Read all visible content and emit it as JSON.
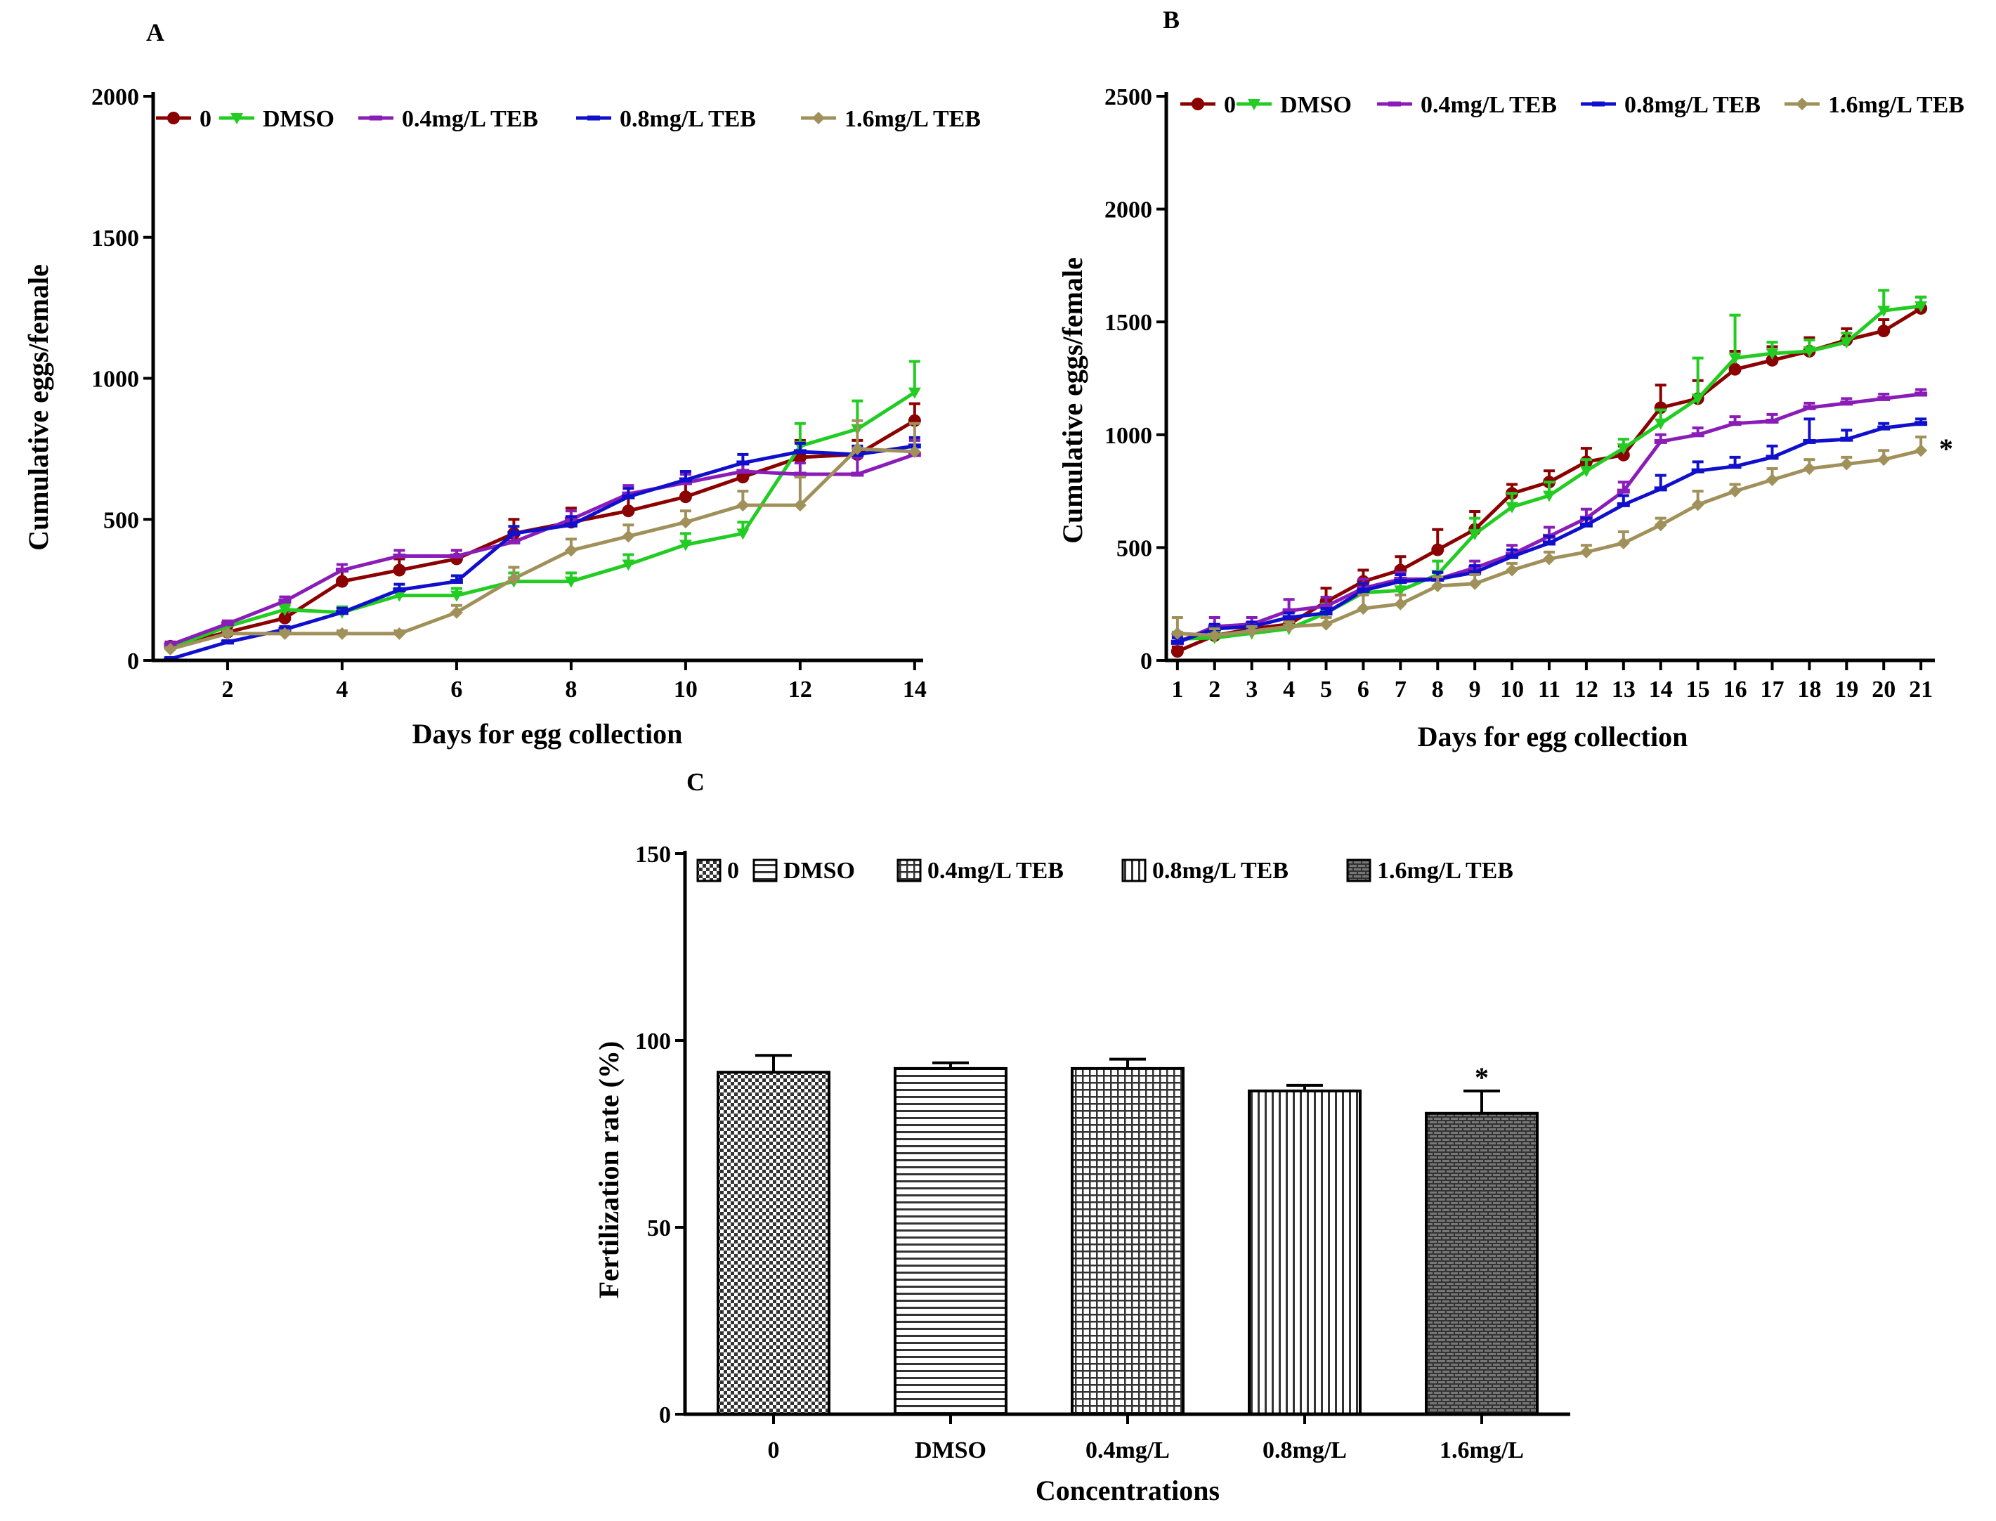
{
  "colors": {
    "control": "#8b0000",
    "dmso": "#22cc22",
    "teb04": "#8a1cb8",
    "teb08": "#1010cc",
    "teb16": "#a0905a",
    "axis": "#000000"
  },
  "chart_data": [
    {
      "id": "A",
      "type": "line",
      "panel_label": "A",
      "xlabel": "Days for egg collection",
      "ylabel": "Cumulative eggs/female",
      "xlim": [
        0.7,
        14.1
      ],
      "ylim": [
        0,
        2000
      ],
      "xticks": [
        2,
        4,
        6,
        8,
        10,
        12,
        14
      ],
      "yticks": [
        0,
        500,
        1000,
        1500,
        2000
      ],
      "legend_position": "top",
      "x": [
        1,
        2,
        3,
        4,
        5,
        6,
        7,
        8,
        9,
        10,
        11,
        12,
        13,
        14
      ],
      "series": [
        {
          "name": "0",
          "color_key": "control",
          "marker": "circle",
          "values": [
            50,
            100,
            150,
            280,
            320,
            360,
            450,
            490,
            530,
            580,
            650,
            720,
            730,
            850
          ],
          "errors": [
            15,
            20,
            25,
            40,
            40,
            30,
            50,
            50,
            50,
            50,
            50,
            60,
            50,
            60
          ]
        },
        {
          "name": "DMSO",
          "color_key": "dmso",
          "marker": "triangle-down",
          "values": [
            45,
            120,
            180,
            170,
            230,
            230,
            280,
            280,
            340,
            410,
            450,
            760,
            820,
            950
          ],
          "errors": [
            10,
            15,
            20,
            20,
            25,
            25,
            30,
            30,
            35,
            40,
            40,
            80,
            100,
            110
          ]
        },
        {
          "name": "0.4mg/L TEB",
          "color_key": "teb04",
          "marker": "dash",
          "values": [
            55,
            130,
            210,
            320,
            370,
            370,
            420,
            500,
            590,
            630,
            670,
            660,
            660,
            730
          ],
          "errors": [
            10,
            10,
            15,
            20,
            20,
            20,
            30,
            30,
            30,
            30,
            30,
            40,
            60,
            50
          ]
        },
        {
          "name": "0.8mg/L TEB",
          "color_key": "teb08",
          "marker": "dash",
          "values": [
            5,
            65,
            110,
            170,
            250,
            280,
            450,
            480,
            580,
            640,
            700,
            740,
            730,
            760
          ],
          "errors": [
            5,
            5,
            10,
            15,
            20,
            20,
            25,
            30,
            30,
            30,
            30,
            30,
            30,
            30
          ]
        },
        {
          "name": "1.6mg/L TEB",
          "color_key": "teb16",
          "marker": "diamond",
          "values": [
            40,
            95,
            95,
            95,
            95,
            170,
            290,
            390,
            440,
            490,
            550,
            550,
            750,
            740
          ],
          "errors": [
            5,
            10,
            10,
            10,
            10,
            25,
            40,
            40,
            40,
            40,
            50,
            100,
            100,
            100
          ]
        }
      ]
    },
    {
      "id": "B",
      "type": "line",
      "panel_label": "B",
      "xlabel": "Days for egg collection",
      "ylabel": "Cumulative eggs/female",
      "xlim": [
        0.7,
        21.3
      ],
      "ylim": [
        0,
        2500
      ],
      "xticks": [
        1,
        2,
        3,
        4,
        5,
        6,
        7,
        8,
        9,
        10,
        11,
        12,
        13,
        14,
        15,
        16,
        17,
        18,
        19,
        20,
        21
      ],
      "yticks": [
        0,
        500,
        1000,
        1500,
        2000,
        2500
      ],
      "legend_position": "top",
      "annotation": "*",
      "x": [
        1,
        2,
        3,
        4,
        5,
        6,
        7,
        8,
        9,
        10,
        11,
        12,
        13,
        14,
        15,
        16,
        17,
        18,
        19,
        20,
        21
      ],
      "series": [
        {
          "name": "0",
          "color_key": "control",
          "marker": "circle",
          "values": [
            40,
            110,
            140,
            160,
            260,
            350,
            400,
            490,
            580,
            740,
            790,
            880,
            910,
            1120,
            1160,
            1290,
            1330,
            1370,
            1420,
            1460,
            1560
          ],
          "errors": [
            20,
            25,
            25,
            30,
            60,
            50,
            60,
            90,
            80,
            40,
            50,
            60,
            40,
            100,
            80,
            80,
            60,
            60,
            50,
            50,
            50
          ]
        },
        {
          "name": "DMSO",
          "color_key": "dmso",
          "marker": "triangle-down",
          "values": [
            95,
            100,
            120,
            140,
            210,
            300,
            310,
            380,
            560,
            680,
            730,
            840,
            940,
            1050,
            1160,
            1340,
            1360,
            1370,
            1410,
            1550,
            1570
          ],
          "errors": [
            30,
            30,
            25,
            30,
            40,
            40,
            40,
            60,
            70,
            60,
            60,
            50,
            40,
            60,
            180,
            190,
            50,
            50,
            40,
            90,
            40
          ]
        },
        {
          "name": "0.4mg/L TEB",
          "color_key": "teb04",
          "marker": "dash",
          "values": [
            80,
            150,
            160,
            220,
            240,
            320,
            360,
            360,
            410,
            470,
            550,
            630,
            750,
            970,
            1000,
            1050,
            1060,
            1120,
            1140,
            1160,
            1180
          ],
          "errors": [
            30,
            40,
            30,
            50,
            40,
            40,
            30,
            30,
            30,
            40,
            40,
            40,
            40,
            30,
            30,
            30,
            30,
            20,
            20,
            20,
            20
          ]
        },
        {
          "name": "0.8mg/L TEB",
          "color_key": "teb08",
          "marker": "dash",
          "values": [
            80,
            140,
            150,
            190,
            210,
            310,
            350,
            360,
            390,
            460,
            520,
            600,
            690,
            760,
            840,
            860,
            900,
            970,
            980,
            1030,
            1050
          ],
          "errors": [
            20,
            20,
            20,
            20,
            20,
            30,
            30,
            30,
            30,
            30,
            30,
            30,
            40,
            60,
            40,
            40,
            50,
            100,
            40,
            20,
            20
          ]
        },
        {
          "name": "1.6mg/L  TEB",
          "color_key": "teb16",
          "marker": "diamond",
          "values": [
            120,
            110,
            130,
            150,
            160,
            230,
            250,
            330,
            340,
            400,
            450,
            480,
            520,
            600,
            690,
            750,
            800,
            850,
            870,
            890,
            930
          ],
          "errors": [
            70,
            30,
            20,
            20,
            30,
            60,
            40,
            40,
            40,
            30,
            30,
            30,
            50,
            30,
            60,
            30,
            50,
            40,
            30,
            40,
            60
          ]
        }
      ]
    },
    {
      "id": "C",
      "type": "bar",
      "panel_label": "C",
      "xlabel": "Concentrations",
      "ylabel": "Fertilization rate (%)",
      "ylim": [
        0,
        150
      ],
      "yticks": [
        0,
        50,
        100,
        150
      ],
      "legend_position": "top",
      "categories": [
        "0",
        "DMSO",
        "0.4mg/L",
        "0.8mg/L",
        "1.6mg/L"
      ],
      "values": [
        91.5,
        92.5,
        92.5,
        86.5,
        80.5
      ],
      "errors": [
        4.5,
        1.5,
        2.5,
        1.5,
        6
      ],
      "patterns": [
        "checker",
        "hlines",
        "grid",
        "vlines",
        "brick"
      ],
      "legend": [
        "0",
        "DMSO",
        "0.4mg/L TEB",
        "0.8mg/L TEB",
        "1.6mg/L TEB"
      ],
      "annotation": {
        "text": "*",
        "category": "1.6mg/L"
      }
    }
  ]
}
